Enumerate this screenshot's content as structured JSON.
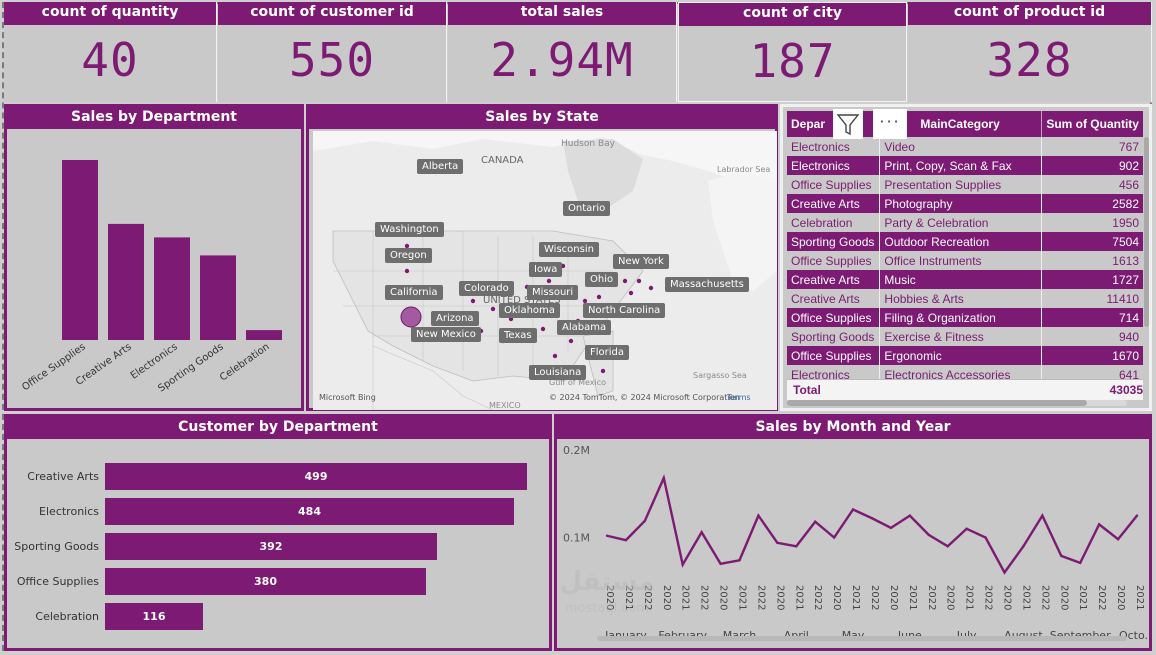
{
  "kpis": [
    {
      "title": "count of quantity",
      "value": "40"
    },
    {
      "title": "count of customer id",
      "value": "550"
    },
    {
      "title": "total sales",
      "value": "2.94M"
    },
    {
      "title": "count of city",
      "value": "187"
    },
    {
      "title": "count of product id",
      "value": "328"
    }
  ],
  "sales_by_department": {
    "title": "Sales by Department"
  },
  "sales_by_state": {
    "title": "Sales by State",
    "labels": [
      "Alberta",
      "Washington",
      "Oregon",
      "California",
      "Arizona",
      "New Mexico",
      "Colorado",
      "Oklahoma",
      "Texas",
      "Iowa",
      "Wisconsin",
      "Missouri",
      "Ontario",
      "New York",
      "Ohio",
      "Massachusetts",
      "North Carolina",
      "Alabama",
      "Florida",
      "Louisiana"
    ],
    "map_text": {
      "canada": "CANADA",
      "united_states": "UNITED STATES",
      "mexico": "MEXICO",
      "hudson_bay": "Hudson Bay",
      "labrador_sea": "Labrador Sea",
      "sargasso_sea": "Sargasso Sea",
      "gulf": "Gulf of Mexico",
      "bing": "Microsoft Bing",
      "copyright": "© 2024 TomTom, © 2024 Microsoft Corporation",
      "terms": "Terms"
    }
  },
  "matrix": {
    "headers": [
      "Department",
      "MainCategory",
      "Sum of Quantity"
    ],
    "header_visible": [
      "Depar",
      "MainCategory",
      "Sum of Quantity"
    ],
    "rows": [
      {
        "dept": "Electronics",
        "cat": "Video",
        "qty": "767"
      },
      {
        "dept": "Electronics",
        "cat": "Print, Copy, Scan & Fax",
        "qty": "902"
      },
      {
        "dept": "Office Supplies",
        "cat": "Presentation Supplies",
        "qty": "456"
      },
      {
        "dept": "Creative Arts",
        "cat": "Photography",
        "qty": "2582"
      },
      {
        "dept": "Celebration",
        "cat": "Party & Celebration",
        "qty": "1950"
      },
      {
        "dept": "Sporting Goods",
        "cat": "Outdoor Recreation",
        "qty": "7504"
      },
      {
        "dept": "Office Supplies",
        "cat": "Office Instruments",
        "qty": "1613"
      },
      {
        "dept": "Creative Arts",
        "cat": "Music",
        "qty": "1727"
      },
      {
        "dept": "Creative Arts",
        "cat": "Hobbies & Arts",
        "qty": "11410"
      },
      {
        "dept": "Office Supplies",
        "cat": "Filing & Organization",
        "qty": "714"
      },
      {
        "dept": "Sporting Goods",
        "cat": "Exercise & Fitness",
        "qty": "940"
      },
      {
        "dept": "Office Supplies",
        "cat": "Ergonomic",
        "qty": "1670"
      },
      {
        "dept": "Electronics",
        "cat": "Electronics Accessories",
        "qty": "641"
      }
    ],
    "total_label": "Total",
    "total_value": "43035"
  },
  "customer_by_department": {
    "title": "Customer by Department"
  },
  "sales_by_month": {
    "title": "Sales by Month and Year"
  },
  "watermark": {
    "arabic": "مستقل",
    "latin": "mostaql.com"
  },
  "chart_data": [
    {
      "type": "bar",
      "title": "Sales by Department",
      "categories": [
        "Office Supplies",
        "Creative Arts",
        "Electronics",
        "Sporting Goods",
        "Celebration"
      ],
      "values": [
        1000,
        645,
        570,
        470,
        55
      ]
    },
    {
      "type": "bar",
      "orientation": "horizontal",
      "title": "Customer by Department",
      "categories": [
        "Creative Arts",
        "Electronics",
        "Sporting Goods",
        "Office Supplies",
        "Celebration"
      ],
      "values": [
        499,
        484,
        392,
        380,
        116
      ]
    },
    {
      "type": "line",
      "title": "Sales by Month and Year",
      "y_ticks": [
        "0.2M",
        "0.1M"
      ],
      "ylim": [
        0,
        200000
      ],
      "x": [
        "2020",
        "2021",
        "2022",
        "2020",
        "2021",
        "2022",
        "2020",
        "2021",
        "2022",
        "2020",
        "2021",
        "2022",
        "2020",
        "2021",
        "2022",
        "2020",
        "2021",
        "2022",
        "2020",
        "2021",
        "2022",
        "2020",
        "2021",
        "2022",
        "2020",
        "2021",
        "2022",
        "2020",
        "2021"
      ],
      "month_labels": [
        "January",
        "February",
        "March",
        "April",
        "May",
        "June",
        "July",
        "August",
        "September",
        "Octo..."
      ],
      "values": [
        102000,
        97000,
        119000,
        168000,
        69000,
        106000,
        70000,
        74000,
        125000,
        94000,
        90000,
        118000,
        100000,
        132000,
        122000,
        111000,
        125000,
        103000,
        90000,
        110000,
        100000,
        60000,
        90000,
        125000,
        79000,
        71000,
        115000,
        98000,
        125000
      ]
    }
  ]
}
